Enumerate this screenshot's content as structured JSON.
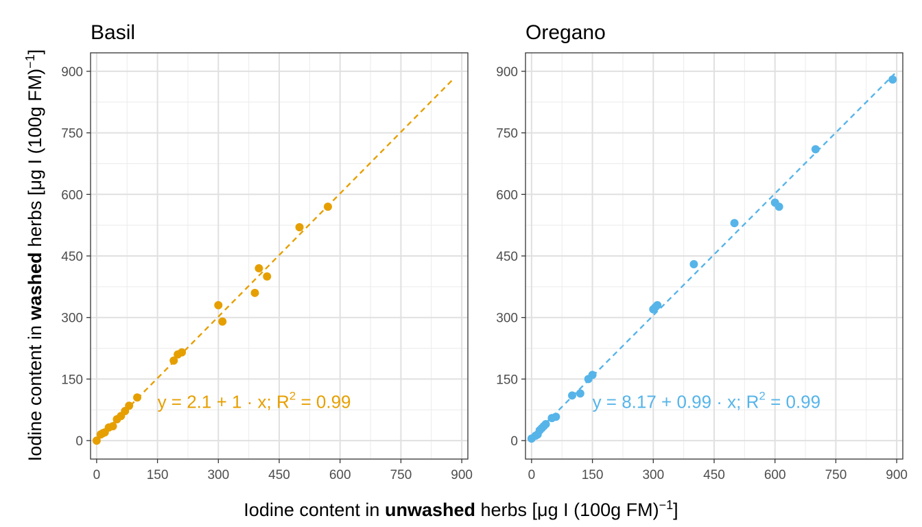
{
  "figure": {
    "x_axis_title": {
      "prefix": "Iodine content in ",
      "bold": "unwashed",
      "suffix_text": " herbs [μg I (100g FM)",
      "suffix_sup": "−1",
      "close": "]"
    },
    "y_axis_title": {
      "prefix": "Iodine content in ",
      "bold": "washed",
      "suffix_text": " herbs [μg I (100g FM)",
      "suffix_sup": "−1",
      "close": "]"
    }
  },
  "chart_data": [
    {
      "type": "scatter",
      "panel_title": "Basil",
      "color": "#E69F00",
      "xlim": [
        -15,
        915
      ],
      "ylim": [
        -45,
        945
      ],
      "x_ticks": [
        0,
        150,
        300,
        450,
        600,
        750,
        900
      ],
      "y_ticks": [
        0,
        150,
        300,
        450,
        600,
        750,
        900
      ],
      "grid": true,
      "points": [
        {
          "x": 0,
          "y": 0
        },
        {
          "x": 10,
          "y": 15
        },
        {
          "x": 15,
          "y": 18
        },
        {
          "x": 20,
          "y": 20
        },
        {
          "x": 30,
          "y": 32
        },
        {
          "x": 40,
          "y": 35
        },
        {
          "x": 50,
          "y": 52
        },
        {
          "x": 60,
          "y": 60
        },
        {
          "x": 70,
          "y": 72
        },
        {
          "x": 80,
          "y": 85
        },
        {
          "x": 100,
          "y": 105
        },
        {
          "x": 190,
          "y": 195
        },
        {
          "x": 200,
          "y": 210
        },
        {
          "x": 210,
          "y": 215
        },
        {
          "x": 300,
          "y": 330
        },
        {
          "x": 310,
          "y": 290
        },
        {
          "x": 390,
          "y": 360
        },
        {
          "x": 400,
          "y": 420
        },
        {
          "x": 420,
          "y": 400
        },
        {
          "x": 500,
          "y": 520
        },
        {
          "x": 570,
          "y": 570
        }
      ],
      "fit": {
        "intercept": 2.1,
        "slope": 1,
        "x_range": [
          0,
          880
        ],
        "style": "dashed"
      },
      "annotation": {
        "x": 150,
        "y": 95,
        "pre": "y = 2.1 + 1 · x;  R",
        "sup": "2",
        "post": " = 0.99"
      }
    },
    {
      "type": "scatter",
      "panel_title": "Oregano",
      "color": "#56B4E9",
      "xlim": [
        -15,
        915
      ],
      "ylim": [
        -45,
        945
      ],
      "x_ticks": [
        0,
        150,
        300,
        450,
        600,
        750,
        900
      ],
      "y_ticks": [
        0,
        150,
        300,
        450,
        600,
        750,
        900
      ],
      "grid": true,
      "points": [
        {
          "x": 0,
          "y": 5
        },
        {
          "x": 10,
          "y": 12
        },
        {
          "x": 15,
          "y": 15
        },
        {
          "x": 20,
          "y": 25
        },
        {
          "x": 25,
          "y": 30
        },
        {
          "x": 30,
          "y": 35
        },
        {
          "x": 35,
          "y": 40
        },
        {
          "x": 50,
          "y": 55
        },
        {
          "x": 60,
          "y": 58
        },
        {
          "x": 100,
          "y": 110
        },
        {
          "x": 120,
          "y": 115
        },
        {
          "x": 140,
          "y": 150
        },
        {
          "x": 150,
          "y": 160
        },
        {
          "x": 300,
          "y": 320
        },
        {
          "x": 305,
          "y": 325
        },
        {
          "x": 310,
          "y": 330
        },
        {
          "x": 400,
          "y": 430
        },
        {
          "x": 500,
          "y": 530
        },
        {
          "x": 600,
          "y": 580
        },
        {
          "x": 610,
          "y": 570
        },
        {
          "x": 700,
          "y": 710
        },
        {
          "x": 890,
          "y": 880
        }
      ],
      "fit": {
        "intercept": 8.17,
        "slope": 0.99,
        "x_range": [
          0,
          895
        ],
        "style": "dashed"
      },
      "annotation": {
        "x": 150,
        "y": 95,
        "pre": "y = 8.17 + 0.99 · x;  R",
        "sup": "2",
        "post": " = 0.99"
      }
    }
  ]
}
